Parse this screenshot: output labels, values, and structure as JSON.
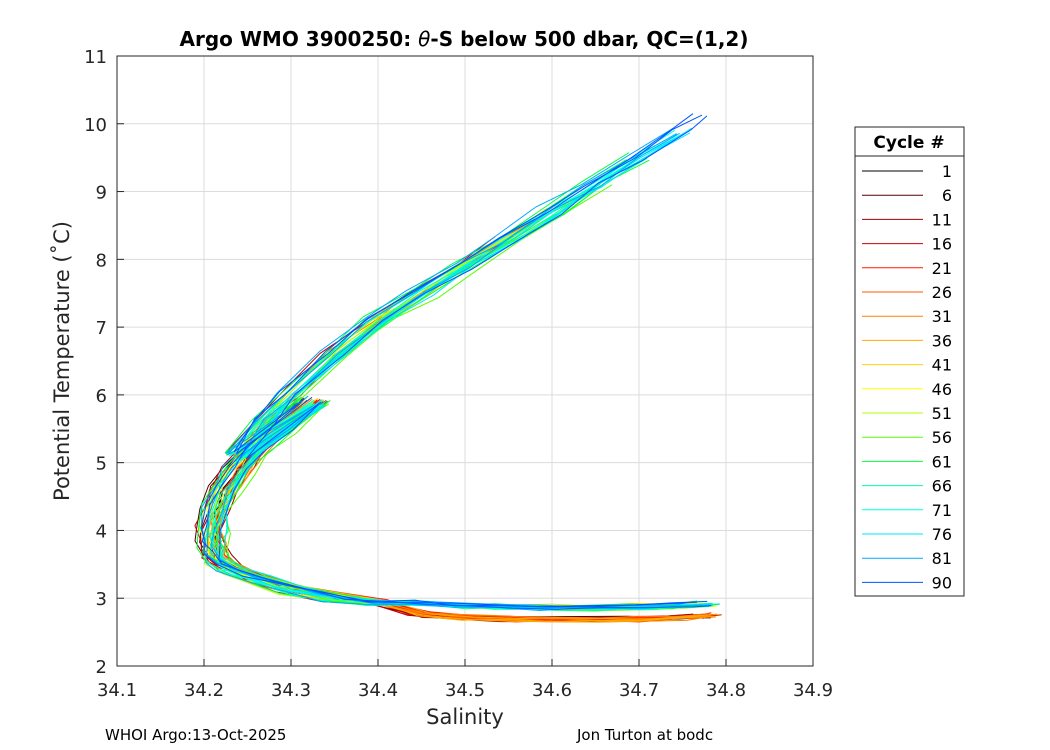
{
  "chart_data": {
    "type": "line",
    "title_prefix": "Argo WMO 3900250: ",
    "title_symbol": "θ",
    "title_suffix": "-S below 500 dbar,  QC=(1,2)",
    "xlabel": "Salinity",
    "ylabel": "Potential Temperature (˚C)",
    "xlim": [
      34.1,
      34.9
    ],
    "ylim": [
      2,
      11
    ],
    "xticks": [
      "34.1",
      "34.2",
      "34.3",
      "34.4",
      "34.5",
      "34.6",
      "34.7",
      "34.8",
      "34.9"
    ],
    "yticks": [
      "2",
      "3",
      "4",
      "5",
      "6",
      "7",
      "8",
      "9",
      "10",
      "11"
    ],
    "grid": true,
    "legend_title": "Cycle #",
    "legend_position": "right",
    "series": [
      {
        "name": "1",
        "color": "#000000"
      },
      {
        "name": "6",
        "color": "#550000"
      },
      {
        "name": "11",
        "color": "#a00000"
      },
      {
        "name": "16",
        "color": "#cc0000"
      },
      {
        "name": "21",
        "color": "#ff1a00"
      },
      {
        "name": "26",
        "color": "#ff5500"
      },
      {
        "name": "31",
        "color": "#ff8000"
      },
      {
        "name": "36",
        "color": "#ffaa00"
      },
      {
        "name": "41",
        "color": "#ffd500"
      },
      {
        "name": "46",
        "color": "#ffff00"
      },
      {
        "name": "51",
        "color": "#b0ff00"
      },
      {
        "name": "56",
        "color": "#55ff00"
      },
      {
        "name": "61",
        "color": "#00ff40"
      },
      {
        "name": "66",
        "color": "#00ff9f"
      },
      {
        "name": "71",
        "color": "#00ffe0"
      },
      {
        "name": "76",
        "color": "#00e5ff"
      },
      {
        "name": "81",
        "color": "#00aaff"
      },
      {
        "name": "90",
        "color": "#0055ff"
      }
    ],
    "profile_template": {
      "salinity": [
        34.33,
        34.29,
        34.26,
        34.24,
        34.225,
        34.215,
        34.21,
        34.21,
        34.215,
        34.23,
        34.26,
        34.3,
        34.35,
        34.4,
        34.45,
        34.5,
        34.55,
        34.6,
        34.65,
        34.7,
        34.75,
        34.78
      ],
      "temperature": [
        5.9,
        5.5,
        5.2,
        4.9,
        4.6,
        4.3,
        4.0,
        3.8,
        3.6,
        3.45,
        3.3,
        3.15,
        3.02,
        2.94,
        2.88,
        2.84,
        2.82,
        2.81,
        2.81,
        2.82,
        2.84,
        2.86
      ]
    },
    "upper_branch": {
      "salinity": [
        34.24,
        34.27,
        34.3,
        34.35,
        34.4,
        34.45,
        34.5,
        34.55,
        34.6,
        34.65,
        34.7,
        34.75,
        34.775
      ],
      "temperature": [
        5.1,
        5.6,
        6.0,
        6.6,
        7.1,
        7.5,
        7.9,
        8.3,
        8.7,
        9.1,
        9.5,
        9.9,
        10.1
      ]
    }
  },
  "footer": {
    "left": "WHOI Argo:13-Oct-2025",
    "right": "Jon Turton at bodc"
  }
}
